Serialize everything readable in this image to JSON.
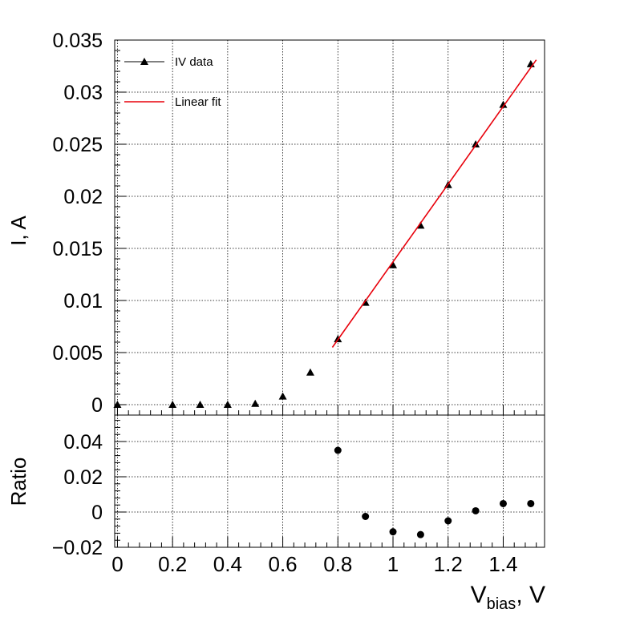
{
  "chart_data": [
    {
      "type": "scatter",
      "ylabel": "I, A",
      "xlim": [
        -0.01,
        1.55
      ],
      "ylim": [
        -0.001,
        0.035
      ],
      "x_ticks": [
        0,
        0.2,
        0.4,
        0.6,
        0.8,
        1,
        1.2,
        1.4
      ],
      "y_ticks": [
        0,
        0.005,
        0.01,
        0.015,
        0.02,
        0.025,
        0.03,
        0.035
      ],
      "y_tick_labels": [
        "0",
        "0.005",
        "0.01",
        "0.015",
        "0.02",
        "0.025",
        "0.03",
        "0.035"
      ],
      "grid": true,
      "legend_position": "top-left",
      "series": [
        {
          "name": "IV data",
          "marker": "triangle",
          "color": "#000000",
          "x": [
            0,
            0.2,
            0.3,
            0.4,
            0.5,
            0.6,
            0.7,
            0.8,
            0.9,
            1.0,
            1.1,
            1.2,
            1.3,
            1.4,
            1.5
          ],
          "y": [
            0.0,
            0.0,
            0.0,
            0.0,
            0.0001,
            0.0008,
            0.0031,
            0.0063,
            0.0098,
            0.0134,
            0.0172,
            0.0211,
            0.025,
            0.0288,
            0.0327
          ]
        },
        {
          "name": "Linear fit",
          "type": "line",
          "color": "#e8000b",
          "x": [
            0.78,
            1.52
          ],
          "y": [
            0.0055,
            0.0331
          ]
        }
      ]
    },
    {
      "type": "scatter",
      "xlabel": "V_bias, V",
      "xlabel_main": "V",
      "xlabel_sub": "bias",
      "xlabel_rest": ", V",
      "ylabel": "Ratio",
      "xlim": [
        -0.01,
        1.55
      ],
      "ylim": [
        -0.02,
        0.055
      ],
      "x_ticks": [
        0,
        0.2,
        0.4,
        0.6,
        0.8,
        1,
        1.2,
        1.4
      ],
      "x_tick_labels": [
        "0",
        "0.2",
        "0.4",
        "0.6",
        "0.8",
        "1",
        "1.2",
        "1.4"
      ],
      "y_ticks": [
        -0.02,
        0,
        0.02,
        0.04
      ],
      "y_tick_labels": [
        "−0.02",
        "0",
        "0.02",
        "0.04"
      ],
      "grid": true,
      "series": [
        {
          "marker": "circle",
          "color": "#000000",
          "x": [
            0.8,
            0.9,
            1.0,
            1.1,
            1.2,
            1.3,
            1.4,
            1.5
          ],
          "y": [
            0.035,
            -0.0025,
            -0.0112,
            -0.0128,
            -0.005,
            0.0007,
            0.0048,
            0.0048
          ]
        }
      ]
    }
  ]
}
